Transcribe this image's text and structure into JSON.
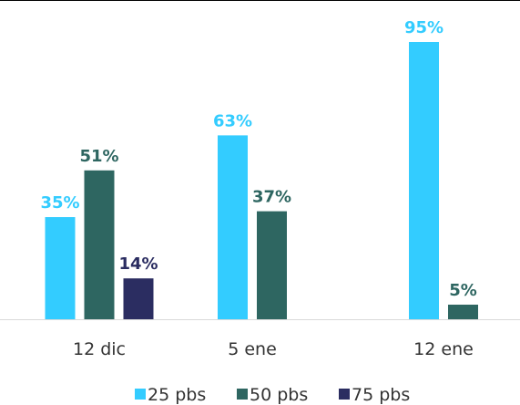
{
  "chart_data": {
    "type": "bar",
    "categories": [
      "12 dic",
      "5 ene",
      "12 ene"
    ],
    "series": [
      {
        "name": "25 pbs",
        "values": [
          35,
          63,
          95
        ],
        "labels": [
          "35%",
          "63%",
          "95%"
        ],
        "color": "#33ccff",
        "label_color": "#33ccff"
      },
      {
        "name": "50 pbs",
        "values": [
          51,
          37,
          5
        ],
        "labels": [
          "51%",
          "37%",
          "5%"
        ],
        "color": "#2e6661",
        "label_color": "#2e6661"
      },
      {
        "name": "75 pbs",
        "values": [
          14,
          null,
          null
        ],
        "labels": [
          "14%",
          "",
          ""
        ],
        "color": "#2b2d61",
        "label_color": "#2b2d61"
      }
    ],
    "ylim": [
      0,
      100
    ],
    "grid": false,
    "legend_position": "bottom"
  }
}
